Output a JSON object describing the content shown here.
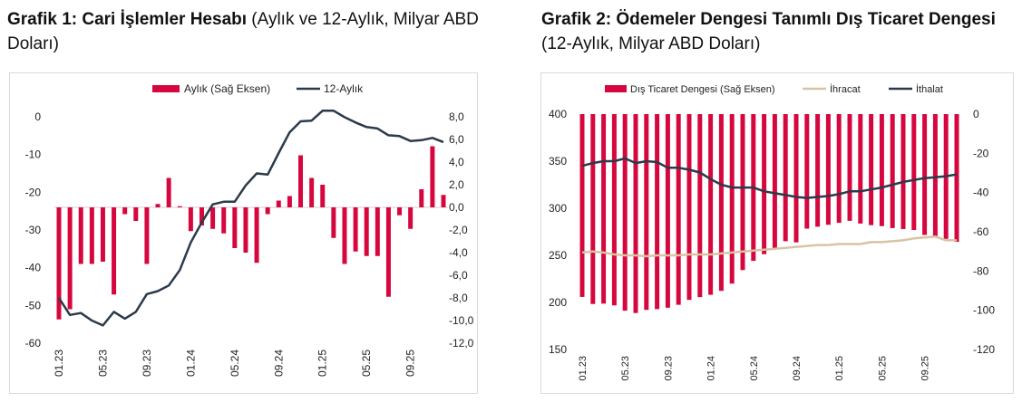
{
  "titles": {
    "chart1_bold": "Grafik 1: Cari İşlemler Hesabı",
    "chart1_sub": " (Aylık ve 12-Aylık, Milyar ABD Doları)",
    "chart2_bold": "Grafik 2: Ödemeler Dengesi Tanımlı Dış Ticaret Dengesi",
    "chart2_sub": " (12-Aylık, Milyar ABD Doları)"
  },
  "colors": {
    "bar": "#d6073f",
    "line": "#2b3a4a",
    "export": "#d8c3a5"
  },
  "chart_data": [
    {
      "type": "bar+line",
      "title": "Grafik 1: Cari İşlemler Hesabı (Aylık ve 12-Aylık, Milyar ABD Doları)",
      "legend": [
        "Aylık (Sağ Eksen)",
        "12-Aylık"
      ],
      "x_ticks": [
        "01.23",
        "05.23",
        "09.23",
        "01.24",
        "05.24",
        "09.24",
        "01.25",
        "05.25",
        "09.25"
      ],
      "left_ticks": [
        "0",
        "-10",
        "-20",
        "-30",
        "-40",
        "-50",
        "-60"
      ],
      "right_ticks": [
        "8,0",
        "6,0",
        "4,0",
        "2,0",
        "0,0",
        "-2,0",
        "-4,0",
        "-6,0",
        "-8,0",
        "-10,0",
        "-12,0"
      ],
      "ylim_left": [
        -60,
        0
      ],
      "ylim_right": [
        -12,
        8
      ],
      "monthly_right_axis": [
        -9.9,
        -9.0,
        -5.0,
        -5.0,
        -4.8,
        -7.7,
        -0.6,
        -1.2,
        -5.0,
        0.3,
        2.6,
        0.1,
        -2.1,
        -1.6,
        -1.9,
        -2.3,
        -3.6,
        -4.0,
        -4.9,
        -0.6,
        0.6,
        1.0,
        4.6,
        2.6,
        2.0,
        -2.7,
        -5.0,
        -3.9,
        -4.3,
        -4.3,
        -7.9,
        -0.7,
        -1.9,
        1.6,
        5.4,
        1.1
      ],
      "twelve_month": [
        -48.0,
        -52.5,
        -52.0,
        -54.0,
        -55.3,
        -51.7,
        -53.5,
        -51.7,
        -47.0,
        -46.2,
        -44.7,
        -40.6,
        -33.3,
        -28.0,
        -23.2,
        -22.5,
        -22.5,
        -18.2,
        -15.0,
        -15.3,
        -9.6,
        -4.1,
        -1.2,
        -1.0,
        1.6,
        1.6,
        -0.1,
        -1.5,
        -2.7,
        -3.1,
        -4.9,
        -5.1,
        -6.4,
        -6.2,
        -5.6,
        -6.7
      ]
    },
    {
      "type": "bar+line",
      "title": "Grafik 2: Ödemeler Dengesi Tanımlı Dış Ticaret Dengesi (12-Aylık, Milyar ABD Doları)",
      "legend": [
        "Dış Ticaret Dengesi (Sağ Eksen)",
        "İhracat",
        "İthalat"
      ],
      "x_ticks": [
        "01.23",
        "05.23",
        "09.23",
        "01.24",
        "05.24",
        "09.24",
        "01.25",
        "05.25",
        "09.25"
      ],
      "left_ticks": [
        "400",
        "350",
        "300",
        "250",
        "200",
        "150"
      ],
      "right_ticks": [
        "0",
        "-20",
        "-40",
        "-60",
        "-80",
        "-100",
        "-120"
      ],
      "ylim_left": [
        150,
        400
      ],
      "ylim_right": [
        -120,
        0
      ],
      "trade_balance_right_axis": [
        -93.2,
        -96.8,
        -96.6,
        -97.5,
        -100.2,
        -101.4,
        -99.8,
        -99.4,
        -98.7,
        -97.2,
        -94.7,
        -93.3,
        -92.1,
        -90.1,
        -86.4,
        -79.5,
        -74.8,
        -71.4,
        -68.6,
        -64.8,
        -65.4,
        -58.4,
        -57.4,
        -56.4,
        -55.4,
        -54.4,
        -55.8,
        -56.6,
        -57.1,
        -58.1,
        -58.6,
        -59.1,
        -61.6,
        -62.1,
        -63.6,
        -65.1
      ],
      "exports": [
        253,
        254,
        253,
        251,
        250,
        250,
        249,
        250,
        250,
        250,
        251,
        251,
        251,
        252,
        253,
        254,
        255,
        256,
        257,
        258,
        259,
        260,
        261,
        261,
        262,
        262,
        262,
        264,
        264,
        265,
        266,
        268,
        269,
        270,
        266,
        266
      ],
      "imports": [
        345,
        348,
        350,
        350,
        353,
        348,
        350,
        349,
        343,
        343,
        341,
        338,
        331,
        325,
        322,
        322,
        322,
        318,
        316,
        314,
        312,
        311,
        312,
        313,
        315,
        318,
        318,
        320,
        322,
        325,
        328,
        330,
        332,
        333,
        334,
        336
      ]
    }
  ]
}
